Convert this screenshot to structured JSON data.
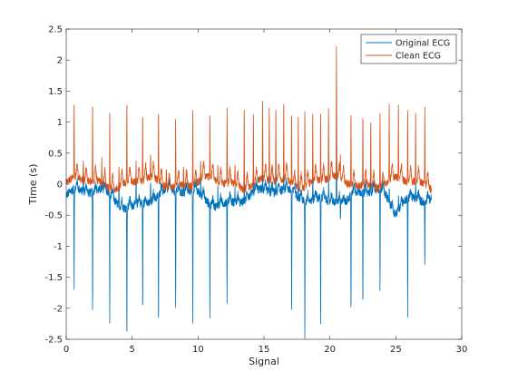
{
  "chart_data": {
    "type": "line",
    "xlabel": "Signal",
    "ylabel": "Time (s)",
    "xlim": [
      0,
      30
    ],
    "ylim": [
      -2.5,
      2.5
    ],
    "x_ticks": [
      0,
      5,
      10,
      15,
      20,
      25,
      30
    ],
    "y_ticks": [
      -2.5,
      -2,
      -1.5,
      -1,
      -0.5,
      0,
      0.5,
      1,
      1.5,
      2,
      2.5
    ],
    "x_tick_labels": [
      "0",
      "5",
      "10",
      "15",
      "20",
      "25",
      "30"
    ],
    "y_tick_labels": [
      "-2.5",
      "-2",
      "-1.5",
      "-1",
      "-0.5",
      "0",
      "0.5",
      "1",
      "1.5",
      "2",
      "2.5"
    ],
    "grid": false,
    "legend_position": "top-right",
    "x_range_data": [
      0,
      27.7
    ],
    "beat_times": [
      0.6,
      1.3,
      2.0,
      2.7,
      3.3,
      4.0,
      4.6,
      5.3,
      5.8,
      6.4,
      7.0,
      7.6,
      8.3,
      8.9,
      9.6,
      10.2,
      10.9,
      11.5,
      12.2,
      12.8,
      13.5,
      14.2,
      14.9,
      15.4,
      15.9,
      16.5,
      17.1,
      17.6,
      18.1,
      18.7,
      19.3,
      19.9,
      20.5,
      20.8,
      21.6,
      22.5,
      23.1,
      23.8,
      24.5,
      25.2,
      25.9,
      26.5,
      27.2
    ],
    "original_peaks": [
      -1.55,
      0.4,
      -2.0,
      0.25,
      -2.05,
      0.35,
      -2.1,
      0.45,
      -1.8,
      0.35,
      -2.15,
      0.4,
      -1.95,
      0.35,
      -2.25,
      0.35,
      -1.9,
      0.3,
      -1.7,
      0.3,
      0.3,
      0.3,
      0.3,
      0.3,
      0.3,
      0.3,
      -2.05,
      0.3,
      -2.2,
      0.35,
      -2.1,
      0.3,
      2.1,
      -0.35,
      -1.95,
      -1.95,
      0.35,
      -1.6,
      0.3,
      0.3,
      -1.9,
      0.3,
      -1.05
    ],
    "clean_peaks": [
      1.2,
      0.3,
      1.2,
      0.35,
      1.25,
      0.3,
      1.3,
      0.3,
      1.1,
      0.4,
      1.15,
      0.3,
      1.1,
      0.3,
      1.2,
      0.3,
      1.1,
      0.3,
      1.25,
      0.3,
      1.3,
      1.15,
      1.3,
      1.2,
      1.15,
      1.25,
      1.1,
      1.15,
      1.2,
      1.1,
      1.1,
      1.2,
      2.1,
      0.3,
      1.2,
      1.2,
      1.1,
      1.2,
      1.2,
      1.2,
      1.15,
      1.1,
      1.25
    ],
    "series": [
      {
        "name": "Original ECG",
        "color": "#0072BD"
      },
      {
        "name": "Clean ECG",
        "color": "#D95319"
      }
    ]
  }
}
